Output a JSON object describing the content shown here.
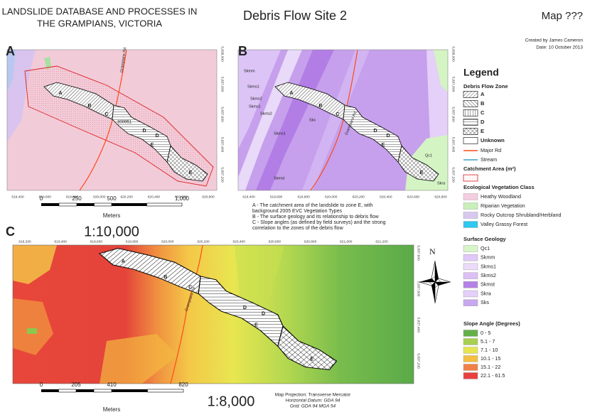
{
  "header": {
    "title_lines": [
      "LANDSLIDE DATABASE AND PROCESSES IN",
      "THE GRAMPIANS, VICTORIA"
    ],
    "site": "Debris Flow Site 2",
    "map_no": "Map ???",
    "author": "Created by James Cameron",
    "date": "Date: 10 October 2013"
  },
  "panels": [
    {
      "label": "A",
      "x_ticks": [
        "619,400",
        "619,600",
        "619,800",
        "620,000",
        "620,200",
        "620,400",
        "620,600",
        "620,800"
      ],
      "y_ticks": [
        "5,838,000",
        "5,837,800",
        "5,837,600",
        "5,837,400",
        "5,837,200"
      ],
      "road": "Grampians Rd",
      "zone_labels": [
        "A",
        "B",
        "C",
        "D",
        "D",
        "E",
        "E"
      ],
      "site_id": "300951",
      "scale": {
        "ticks": [
          "0",
          "250",
          "500",
          "1,000"
        ],
        "unit": "Meters",
        "ratio": "1:10,000"
      }
    },
    {
      "label": "B",
      "x_ticks": [
        "619,400",
        "619,600",
        "619,800",
        "620,000",
        "620,200",
        "620,400",
        "620,600",
        "620,800"
      ],
      "y_ticks": [
        "5,838,000",
        "5,837,800",
        "5,837,600",
        "5,837,400",
        "5,837,200"
      ],
      "road": "Grampians Rd",
      "zone_labels": [
        "A",
        "B",
        "C",
        "D",
        "D",
        "E",
        "E"
      ],
      "geology_labels": [
        "Skmm",
        "Skms1",
        "Skms2",
        "Skms1",
        "Skms2",
        "Sks",
        "Skms1",
        "Skmst",
        "Qc1",
        "Skra"
      ]
    },
    {
      "label": "C",
      "x_ticks": [
        "619,200",
        "619,400",
        "619,600",
        "619,800",
        "620,000",
        "620,200",
        "620,400",
        "620,600",
        "620,800",
        "621,000",
        "621,200"
      ],
      "y_ticks": [
        "5,837,800",
        "5,837,600",
        "5,837,400",
        "5,837,200"
      ],
      "road": "Grampians Rd",
      "zone_labels": [
        "A",
        "B",
        "C",
        "D",
        "D",
        "E",
        "E"
      ],
      "scale": {
        "ticks": [
          "0",
          "205",
          "410",
          "820"
        ],
        "unit": "Meters",
        "ratio": "1:8,000"
      },
      "projection": [
        "Map Projection: Transverse Mercator",
        "Horizontal Datum: GDA 94",
        "Grid: GDA 94 MGA 54"
      ]
    }
  ],
  "description": [
    "A - The catchment area of the landslide to zone E, with",
    "background 2005 EVC Vegetation Types",
    "B - The surface geology and its relationship to debris flow",
    "C - Slope angles (as defined by field surveys) and the strong",
    "correlation to the zones of the debris flow"
  ],
  "north": "N",
  "legend": {
    "title": "Legend",
    "zones": {
      "title": "Debris Flow Zone",
      "items": [
        "A",
        "B",
        "C",
        "D",
        "E",
        "Unknown"
      ]
    },
    "lines": [
      {
        "label": "Major Rd",
        "color": "#ff4a1a"
      },
      {
        "label": "Stream",
        "color": "#3aa0c8"
      }
    ],
    "catchment": "Catchment Area (m²)",
    "classes": [
      {
        "title": "Ecological Vegetation Class",
        "items": [
          {
            "label": "Heathy Woodland",
            "color": "#f5cde0"
          },
          {
            "label": "Riparian Vegetation",
            "color": "#c8f0b8"
          },
          {
            "label": "Rocky Outcrop Shrubland/Herbland",
            "color": "#d8c8f0"
          },
          {
            "label": "Valley Grassy Forest",
            "color": "#2ec8f0"
          }
        ]
      },
      {
        "title": "Surface Geology",
        "items": [
          {
            "label": "Qc1",
            "color": "#d8f5c8"
          },
          {
            "label": "Skmm",
            "color": "#e0c8f8"
          },
          {
            "label": "Skms1",
            "color": "#ecdcfa"
          },
          {
            "label": "Skms2",
            "color": "#dcc0f5"
          },
          {
            "label": "Skmst",
            "color": "#b482e6"
          },
          {
            "label": "Skra",
            "color": "#e4d0f8"
          },
          {
            "label": "Sks",
            "color": "#c8a8f0"
          }
        ]
      },
      {
        "title": "Slope Angle (Degrees)",
        "items": [
          {
            "label": "0 - 5",
            "color": "#62b04a"
          },
          {
            "label": "5.1 - 7",
            "color": "#a8d050"
          },
          {
            "label": "7.1 - 10",
            "color": "#e8e650"
          },
          {
            "label": "10.1 - 15",
            "color": "#f5c040"
          },
          {
            "label": "15.1 - 22",
            "color": "#f08048"
          },
          {
            "label": "22.1 - 61.5",
            "color": "#e84040"
          }
        ]
      }
    ]
  }
}
